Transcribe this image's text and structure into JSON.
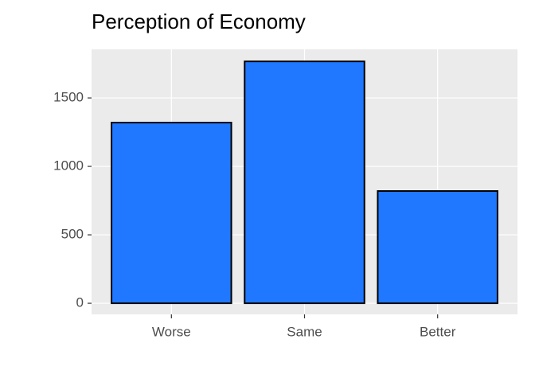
{
  "chart_data": {
    "type": "bar",
    "title": "Perception of Economy",
    "categories": [
      "Worse",
      "Same",
      "Better"
    ],
    "values": [
      1320,
      1767,
      820
    ],
    "color": "#1f78ff",
    "ylim": [
      -81,
      1855
    ],
    "yticks": [
      0,
      500,
      1000,
      1500
    ],
    "grid": true
  }
}
